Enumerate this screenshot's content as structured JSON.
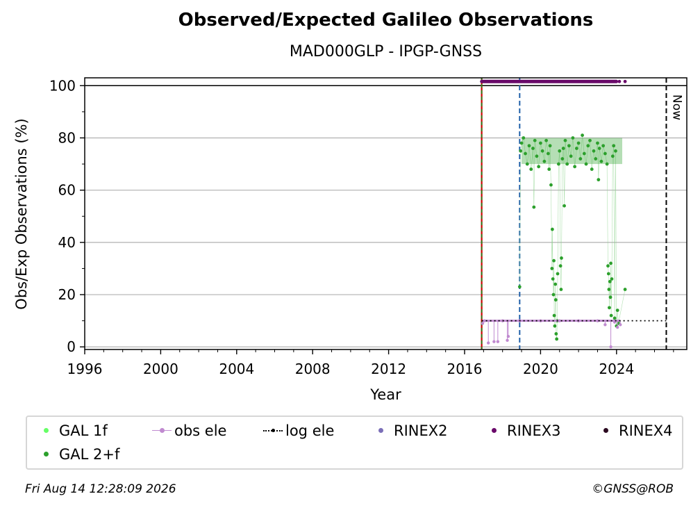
{
  "title": "Observed/Expected Galileo Observations",
  "subtitle": "MAD000GLP - IPGP-GNSS",
  "footer": {
    "timestamp": "Fri Aug 14 12:28:09 2026",
    "credit": "©GNSS@ROB"
  },
  "chart_data": {
    "type": "scatter",
    "xlabel": "Year",
    "ylabel": "Obs/Exp Observations (%)",
    "xlim": [
      1996,
      2027.7
    ],
    "ylim": [
      -1,
      103
    ],
    "xticks": [
      1996,
      2000,
      2004,
      2008,
      2012,
      2016,
      2020,
      2024
    ],
    "yticks": [
      0,
      20,
      40,
      60,
      80,
      100
    ],
    "grid": "y",
    "reference_lines": [
      {
        "name": "100 %",
        "y": 100
      },
      {
        "name": "start",
        "x": 2016.9
      },
      {
        "name": "change",
        "x": 2018.9
      },
      {
        "name": "Now",
        "x": 2026.62
      }
    ],
    "now_label": "Now",
    "legend_placement": "bottom",
    "legend": [
      {
        "name": "GAL 1f",
        "color": "#66ff66",
        "marker": "dot"
      },
      {
        "name": "obs ele",
        "color": "#c08ad0",
        "marker": "line-dot"
      },
      {
        "name": "log ele",
        "color": "#000000",
        "marker": "dotted"
      },
      {
        "name": "RINEX2",
        "color": "#7b6fb8",
        "marker": "dot"
      },
      {
        "name": "RINEX3",
        "color": "#6a0a6a",
        "marker": "dot"
      },
      {
        "name": "RINEX4",
        "color": "#2b0a20",
        "marker": "dot"
      },
      {
        "name": "GAL 2+f",
        "color": "#2ca02c",
        "marker": "dot"
      }
    ],
    "series": [
      {
        "name": "GAL 2+f",
        "color": "#2ca02c",
        "points": [
          [
            2018.9,
            23
          ],
          [
            2018.95,
            75
          ],
          [
            2019.0,
            78
          ],
          [
            2019.1,
            80
          ],
          [
            2019.2,
            74
          ],
          [
            2019.3,
            70
          ],
          [
            2019.4,
            77
          ],
          [
            2019.5,
            68
          ],
          [
            2019.6,
            76
          ],
          [
            2019.65,
            53.5
          ],
          [
            2019.7,
            79
          ],
          [
            2019.8,
            73
          ],
          [
            2019.9,
            69
          ],
          [
            2020.0,
            78
          ],
          [
            2020.1,
            75
          ],
          [
            2020.2,
            71
          ],
          [
            2020.3,
            79
          ],
          [
            2020.4,
            74
          ],
          [
            2020.45,
            68
          ],
          [
            2020.5,
            77
          ],
          [
            2020.55,
            62
          ],
          [
            2020.6,
            30
          ],
          [
            2020.62,
            45
          ],
          [
            2020.65,
            26
          ],
          [
            2020.68,
            20
          ],
          [
            2020.7,
            33
          ],
          [
            2020.72,
            12
          ],
          [
            2020.75,
            8
          ],
          [
            2020.78,
            24
          ],
          [
            2020.8,
            18
          ],
          [
            2020.82,
            5
          ],
          [
            2020.85,
            3
          ],
          [
            2020.88,
            10
          ],
          [
            2020.9,
            28
          ],
          [
            2020.95,
            70
          ],
          [
            2021.0,
            75
          ],
          [
            2021.05,
            31
          ],
          [
            2021.08,
            22
          ],
          [
            2021.1,
            34
          ],
          [
            2021.15,
            72
          ],
          [
            2021.2,
            76
          ],
          [
            2021.25,
            54
          ],
          [
            2021.3,
            79
          ],
          [
            2021.4,
            70
          ],
          [
            2021.5,
            77
          ],
          [
            2021.6,
            73
          ],
          [
            2021.7,
            80
          ],
          [
            2021.8,
            69
          ],
          [
            2021.9,
            76
          ],
          [
            2022.0,
            78
          ],
          [
            2022.1,
            72
          ],
          [
            2022.2,
            81
          ],
          [
            2022.3,
            74
          ],
          [
            2022.4,
            70
          ],
          [
            2022.5,
            77
          ],
          [
            2022.6,
            79
          ],
          [
            2022.7,
            68
          ],
          [
            2022.8,
            75
          ],
          [
            2022.9,
            72
          ],
          [
            2023.0,
            78
          ],
          [
            2023.05,
            64
          ],
          [
            2023.1,
            76
          ],
          [
            2023.2,
            71
          ],
          [
            2023.3,
            77
          ],
          [
            2023.4,
            74
          ],
          [
            2023.5,
            70
          ],
          [
            2023.55,
            31
          ],
          [
            2023.58,
            28
          ],
          [
            2023.6,
            22
          ],
          [
            2023.62,
            15
          ],
          [
            2023.65,
            25
          ],
          [
            2023.68,
            19
          ],
          [
            2023.7,
            32
          ],
          [
            2023.72,
            12
          ],
          [
            2023.75,
            26
          ],
          [
            2023.8,
            73
          ],
          [
            2023.85,
            77
          ],
          [
            2023.9,
            11
          ],
          [
            2023.95,
            75
          ],
          [
            2024.0,
            8
          ],
          [
            2024.05,
            14
          ],
          [
            2024.1,
            9
          ],
          [
            2024.45,
            22
          ]
        ]
      },
      {
        "name": "obs ele",
        "color": "#c08ad0",
        "points": [
          [
            2016.95,
            9
          ],
          [
            2017.05,
            10
          ],
          [
            2017.25,
            1.5
          ],
          [
            2017.55,
            2
          ],
          [
            2017.75,
            2
          ],
          [
            2018.0,
            10
          ],
          [
            2018.25,
            2.5
          ],
          [
            2018.3,
            4
          ],
          [
            2018.9,
            10
          ],
          [
            2020.0,
            10
          ],
          [
            2021.0,
            10
          ],
          [
            2022.0,
            10
          ],
          [
            2023.0,
            10
          ],
          [
            2023.4,
            8.5
          ],
          [
            2023.7,
            0
          ],
          [
            2023.9,
            9.5
          ],
          [
            2024.05,
            7.5
          ],
          [
            2024.2,
            8.5
          ]
        ]
      },
      {
        "name": "log ele",
        "color": "#000000",
        "points": [
          [
            2016.9,
            10
          ],
          [
            2026.62,
            10
          ]
        ]
      },
      {
        "name": "RINEX3",
        "color": "#6a0a6a",
        "points": [
          [
            2016.9,
            101.6
          ],
          [
            2024.0,
            101.6
          ],
          [
            2024.15,
            101.6
          ],
          [
            2024.45,
            101.6
          ]
        ]
      }
    ]
  }
}
